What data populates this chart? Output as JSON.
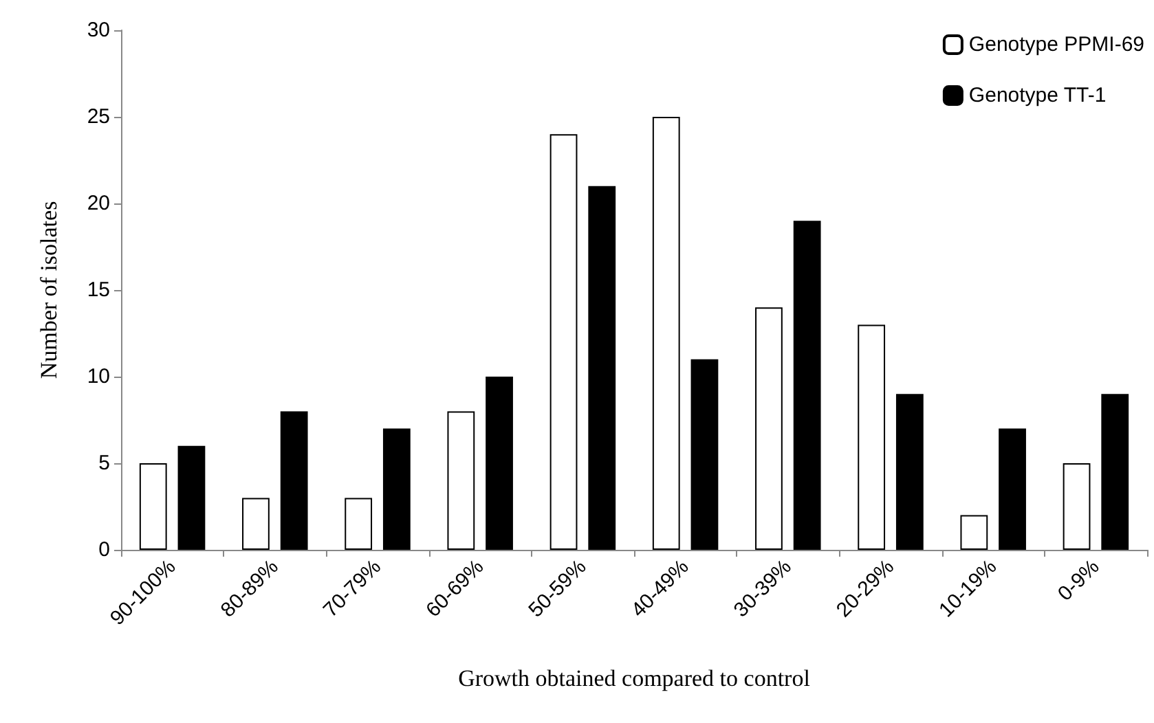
{
  "chart_data": {
    "type": "bar",
    "xlabel": "Growth obtained compared to control",
    "ylabel": "Number of isolates",
    "categories": [
      "90-100%",
      "80-89%",
      "70-79%",
      "60-69%",
      "50-59%",
      "40-49%",
      "30-39%",
      "20-29%",
      "10-19%",
      "0-9%"
    ],
    "series": [
      {
        "name": "Genotype PPMI-69",
        "color": "#ffffff",
        "values": [
          5,
          3,
          3,
          8,
          24,
          25,
          14,
          13,
          2,
          5
        ]
      },
      {
        "name": "Genotype TT-1",
        "color": "#000000",
        "values": [
          6,
          8,
          7,
          10,
          21,
          11,
          19,
          9,
          7,
          9
        ]
      }
    ],
    "ylim": [
      0,
      30
    ],
    "yticks": [
      0,
      5,
      10,
      15,
      20,
      25,
      30
    ],
    "grid": false,
    "legend": "top right"
  }
}
